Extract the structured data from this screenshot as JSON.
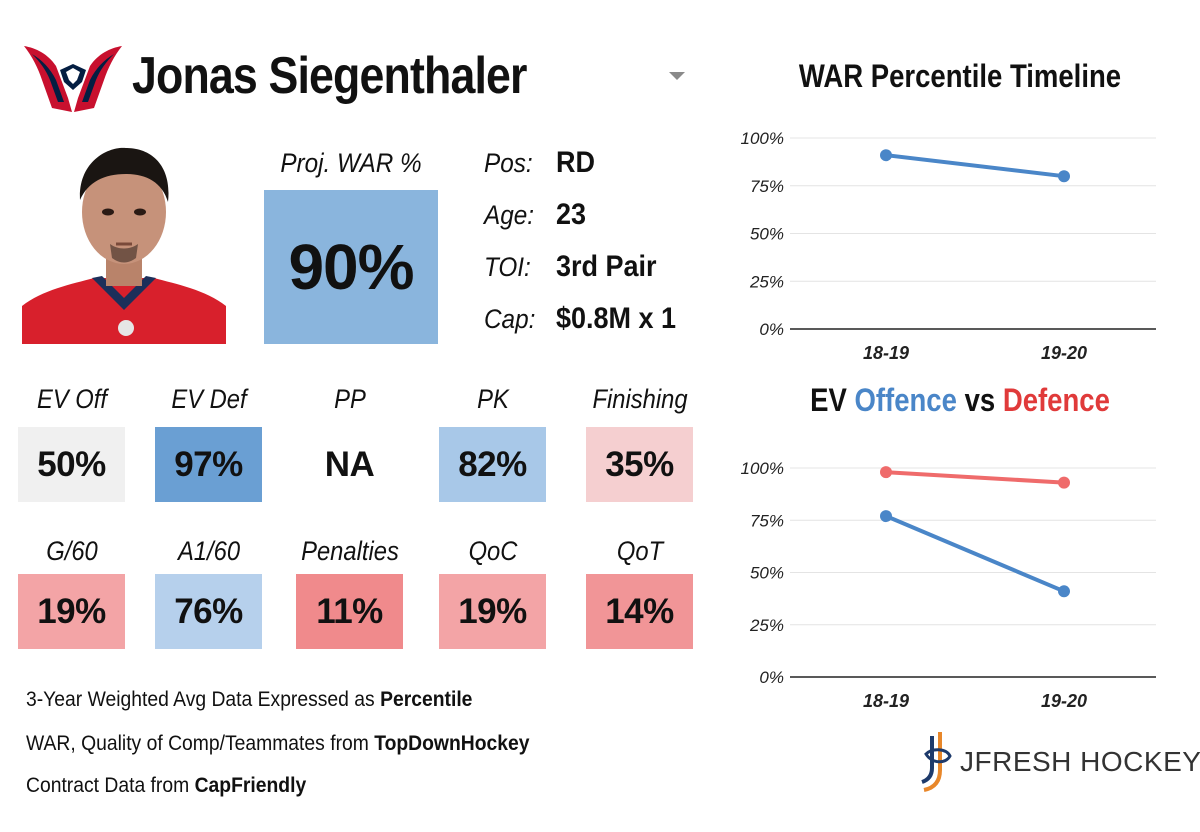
{
  "header": {
    "player_name": "Jonas Siegenthaler",
    "team_logo": "capitals-eagle-icon",
    "dropdown_icon": "caret-down-icon"
  },
  "projection": {
    "label": "Proj. WAR %",
    "value": "90%",
    "color": "#8ab5dd"
  },
  "info": [
    {
      "label": "Pos:",
      "value": "RD"
    },
    {
      "label": "Age:",
      "value": "23"
    },
    {
      "label": "TOI:",
      "value": "3rd Pair"
    },
    {
      "label": "Cap:",
      "value": "$0.8M x 1"
    }
  ],
  "stats_row1": [
    {
      "label": "EV Off",
      "value": "50%",
      "color": "#f0f0f0"
    },
    {
      "label": "EV Def",
      "value": "97%",
      "color": "#6a9fd3"
    },
    {
      "label": "PP",
      "value": "NA",
      "color": "#ffffff"
    },
    {
      "label": "PK",
      "value": "82%",
      "color": "#a8c8e8"
    },
    {
      "label": "Finishing",
      "value": "35%",
      "color": "#f5cfd0"
    }
  ],
  "stats_row2": [
    {
      "label": "G/60",
      "value": "19%",
      "color": "#f3a4a6"
    },
    {
      "label": "A1/60",
      "value": "76%",
      "color": "#b6d0ec"
    },
    {
      "label": "Penalties",
      "value": "11%",
      "color": "#f08a8c"
    },
    {
      "label": "QoC",
      "value": "19%",
      "color": "#f3a4a6"
    },
    {
      "label": "QoT",
      "value": "14%",
      "color": "#f19597"
    }
  ],
  "notes": {
    "line1_prefix": "3-Year Weighted Avg Data Expressed as ",
    "line1_bold": "Percentile",
    "line2_prefix": "WAR, Quality of Comp/Teammates from ",
    "line2_bold": "TopDownHockey",
    "line3_prefix": "Contract Data from ",
    "line3_bold": "CapFriendly"
  },
  "brand": {
    "name": "JFRESH HOCKEY",
    "icon": "jfresh-logo-icon"
  },
  "chart_data": [
    {
      "type": "line",
      "title": "WAR Percentile Timeline",
      "categories": [
        "18-19",
        "19-20"
      ],
      "series": [
        {
          "name": "WAR Percentile",
          "values": [
            91,
            80
          ],
          "color": "#4a86c8"
        }
      ],
      "ylim": [
        0,
        100
      ],
      "yticks": [
        "0%",
        "25%",
        "50%",
        "75%",
        "100%"
      ],
      "xlabel": "",
      "ylabel": "",
      "grid": true
    },
    {
      "type": "line",
      "title_parts": [
        {
          "text": "EV ",
          "color": "#111111"
        },
        {
          "text": "Offence",
          "color": "#4a86c8"
        },
        {
          "text": " vs ",
          "color": "#111111"
        },
        {
          "text": "Defence",
          "color": "#e03a3a"
        }
      ],
      "categories": [
        "18-19",
        "19-20"
      ],
      "series": [
        {
          "name": "Offence",
          "values": [
            77,
            41
          ],
          "color": "#4a86c8"
        },
        {
          "name": "Defence",
          "values": [
            98,
            93
          ],
          "color": "#ef6b6b"
        }
      ],
      "ylim": [
        0,
        100
      ],
      "yticks": [
        "0%",
        "25%",
        "50%",
        "75%",
        "100%"
      ],
      "xlabel": "",
      "ylabel": "",
      "grid": true
    }
  ]
}
